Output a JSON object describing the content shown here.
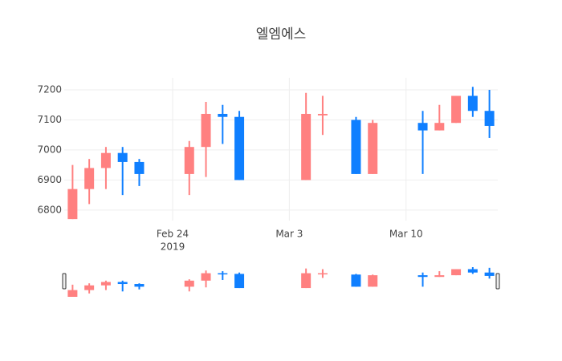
{
  "chart_data": {
    "type": "candlestick",
    "title": "엘엠에스",
    "x": [
      "2019-02-18",
      "2019-02-19",
      "2019-02-20",
      "2019-02-21",
      "2019-02-22",
      "2019-02-25",
      "2019-02-26",
      "2019-02-27",
      "2019-02-28",
      "2019-03-04",
      "2019-03-05",
      "2019-03-07",
      "2019-03-08",
      "2019-03-11",
      "2019-03-12",
      "2019-03-13",
      "2019-03-14",
      "2019-03-15"
    ],
    "open": [
      6770,
      6870,
      6940,
      6990,
      6960,
      6920,
      7010,
      7120,
      7110,
      6900,
      7115,
      7100,
      6920,
      7090,
      7065,
      7090,
      7180,
      7130
    ],
    "high": [
      6950,
      6970,
      7010,
      7010,
      6970,
      7030,
      7160,
      7150,
      7130,
      7190,
      7180,
      7110,
      7100,
      7130,
      7150,
      7180,
      7210,
      7200
    ],
    "low": [
      6770,
      6820,
      6870,
      6850,
      6880,
      6850,
      6910,
      7020,
      6900,
      6900,
      7050,
      6920,
      6920,
      6920,
      7065,
      7090,
      7110,
      7040
    ],
    "close": [
      6870,
      6940,
      6990,
      6960,
      6920,
      7010,
      7120,
      7110,
      6900,
      7120,
      7120,
      6920,
      7090,
      7065,
      7090,
      7180,
      7130,
      7080
    ],
    "increasing_color": "#ff8080",
    "decreasing_color": "#0f7fff",
    "xlim": [
      "2019-02-17T12:00",
      "2019-03-15T12:00"
    ],
    "xticks": [
      {
        "value": "2019-02-24",
        "label": "Feb 24"
      },
      {
        "value": "2019-03-03",
        "label": "Mar 3"
      },
      {
        "value": "2019-03-10",
        "label": "Mar 10"
      }
    ],
    "x_year_label": "2019",
    "ylim": [
      6765,
      7240
    ],
    "yticks": [
      6800,
      6900,
      7000,
      7100,
      7200
    ],
    "grid": true,
    "rangeslider": true
  }
}
